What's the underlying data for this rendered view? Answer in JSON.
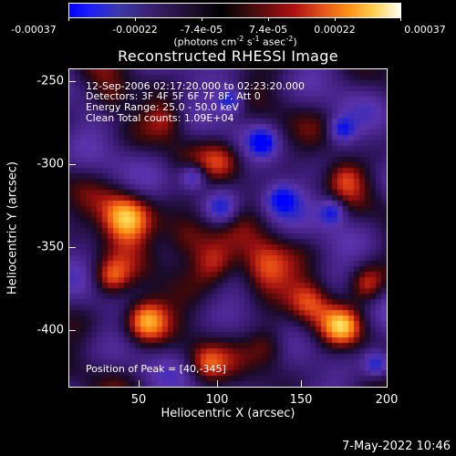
{
  "colorbar": {
    "ticks": [
      "-0.00037",
      "-0.00022",
      "-7.4e-05",
      "7.4e-05",
      "0.00022",
      "0.00037"
    ],
    "unit_prefix": "(photons cm",
    "unit_exp1": "-2",
    "unit_mid": " s",
    "unit_exp2": "-1",
    "unit_mid2": " asec",
    "unit_exp3": "-2",
    "unit_suffix": ")"
  },
  "title": "Reconstructed RHESSI Image",
  "annotations": {
    "time_range": "12-Sep-2006 02:17:20.000 to 02:23:20.000",
    "detectors": "Detectors: 3F 4F 5F 6F 7F 8F, Att 0",
    "energy": "Energy Range: 25.0 - 50.0 keV",
    "clean": "Clean     Total counts: 1.09E+04",
    "peak": "Position of Peak = [40,-345]"
  },
  "axes": {
    "xlabel": "Heliocentric X (arcsec)",
    "ylabel": "Heliocentric Y (arcsec)",
    "xticks": [
      "50",
      "100",
      "150",
      "200"
    ],
    "yticks": [
      "-250",
      "-300",
      "-350",
      "-400"
    ],
    "x_range": [
      8,
      200
    ],
    "y_range": [
      -435,
      -242
    ]
  },
  "peak": {
    "x": 40,
    "y": -345
  },
  "timestamp": "7-May-2022 10:46",
  "colors": {
    "background": "#000000",
    "foreground": "#ffffff"
  }
}
